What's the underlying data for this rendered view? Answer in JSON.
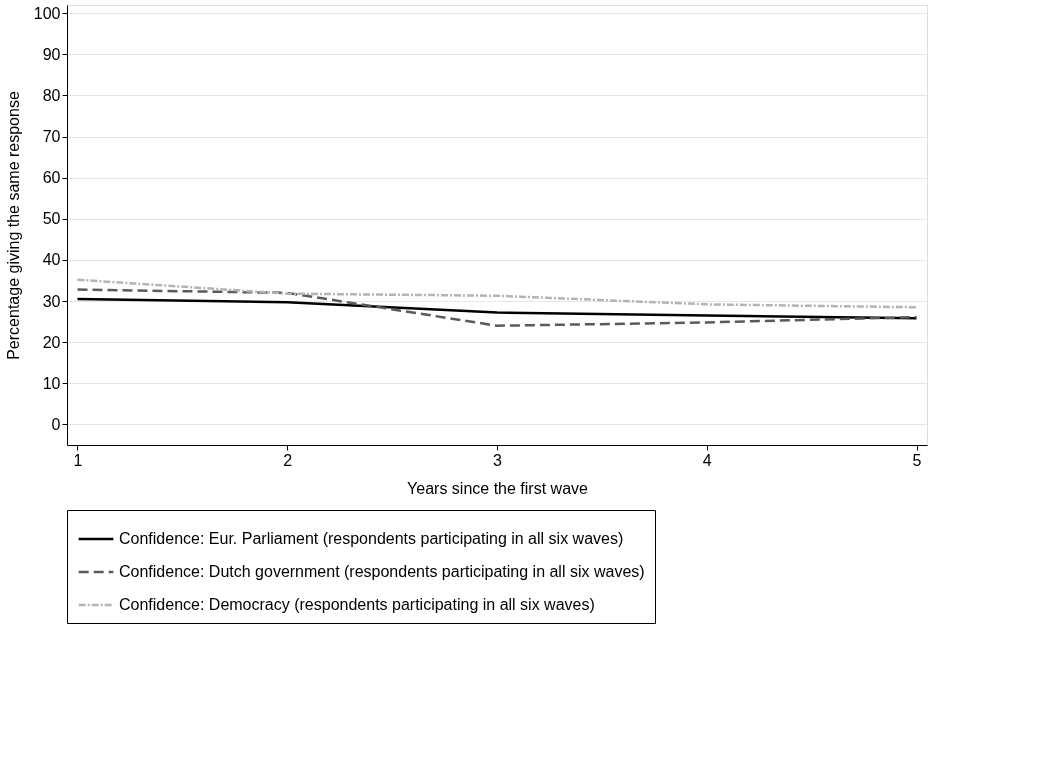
{
  "chart_data": {
    "type": "line",
    "xlabel": "Years since the first wave",
    "ylabel": "Percentage giving the same response",
    "x": [
      1,
      2,
      3,
      4,
      5
    ],
    "xlim": [
      0.95,
      5.05
    ],
    "xticks": [
      1,
      2,
      3,
      4,
      5
    ],
    "ylim": [
      -5,
      102
    ],
    "yticks": [
      0,
      10,
      20,
      30,
      40,
      50,
      60,
      70,
      80,
      90,
      100
    ],
    "grid": "y",
    "legend": "bottom",
    "marker": "none",
    "series": [
      {
        "name": "Confidence: Eur. Parliament (respondents participating in all six waves)",
        "color": "#000000",
        "line_style": "solid",
        "values": [
          30.5,
          29.7,
          27.2,
          26.5,
          25.8
        ]
      },
      {
        "name": "Confidence: Dutch government (respondents participating in all six waves)",
        "color": "#5a5a5a",
        "line_style": "dashed",
        "values": [
          32.8,
          32.0,
          24.0,
          24.8,
          26.1
        ]
      },
      {
        "name": "Confidence: Democracy (respondents participating in all six waves)",
        "color": "#b4b4b4",
        "line_style": "dashdot",
        "values": [
          35.2,
          31.8,
          31.3,
          29.2,
          28.5
        ]
      }
    ]
  }
}
